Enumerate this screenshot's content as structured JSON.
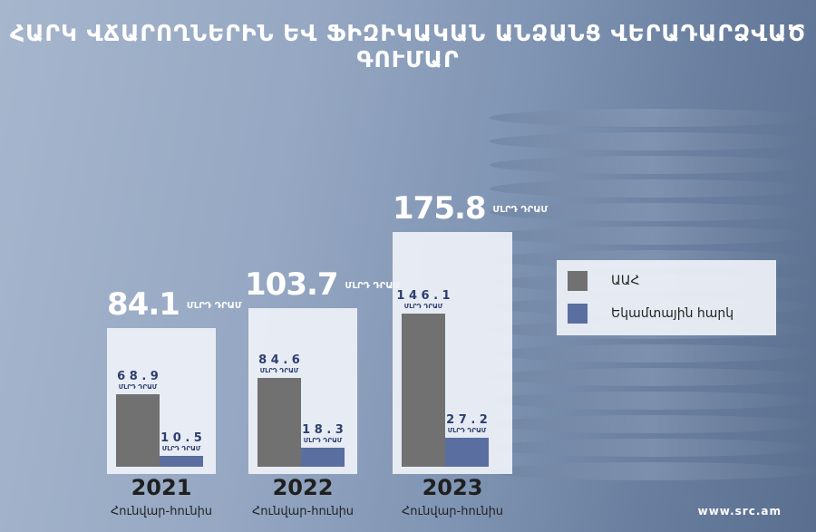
{
  "title": "ՀԱՐԿ ՎՃԱՐՈՂՆԵՐԻՆ ԵՎ ՖԻԶԻԿԱԿԱՆ ԱՆՁԱՆՑ ՎԵՐԱԴԱՐՁՎԱԾ ԳՈՒՄԱՐ",
  "website": "www.src.am",
  "colors": {
    "vat": "#717171",
    "excise": "#5a6e9f"
  },
  "chart_data": {
    "type": "bar",
    "title": "ՀԱՐԿ ՎՃԱՐՈՂՆԵՐԻՆ ԵՎ ՖԻԶԻԿԱԿԱՆ ԱՆՁԱՆՑ ՎԵՐԱԴԱՐՁՎԱԾ ԳՈՒՄԱՐ",
    "unit": "ՄԼՐԴ ԴՐԱՄ",
    "categories": [
      "2021",
      "2022",
      "2023"
    ],
    "period_label": "Հունվար-հունիս",
    "totals": [
      84.1,
      103.7,
      175.8
    ],
    "totals_text": [
      "84.1",
      "103.7",
      "175.8"
    ],
    "series": [
      {
        "name": "ԱԱՀ",
        "values": [
          68.9,
          84.6,
          146.1
        ],
        "values_text": [
          "68.9",
          "84.6",
          "146.1"
        ]
      },
      {
        "name": "Եկամտային հարկ",
        "values": [
          10.5,
          18.3,
          27.2
        ],
        "values_text": [
          "10.5",
          "18.3",
          "27.2"
        ]
      }
    ],
    "legend_position": "right",
    "grid": false
  }
}
